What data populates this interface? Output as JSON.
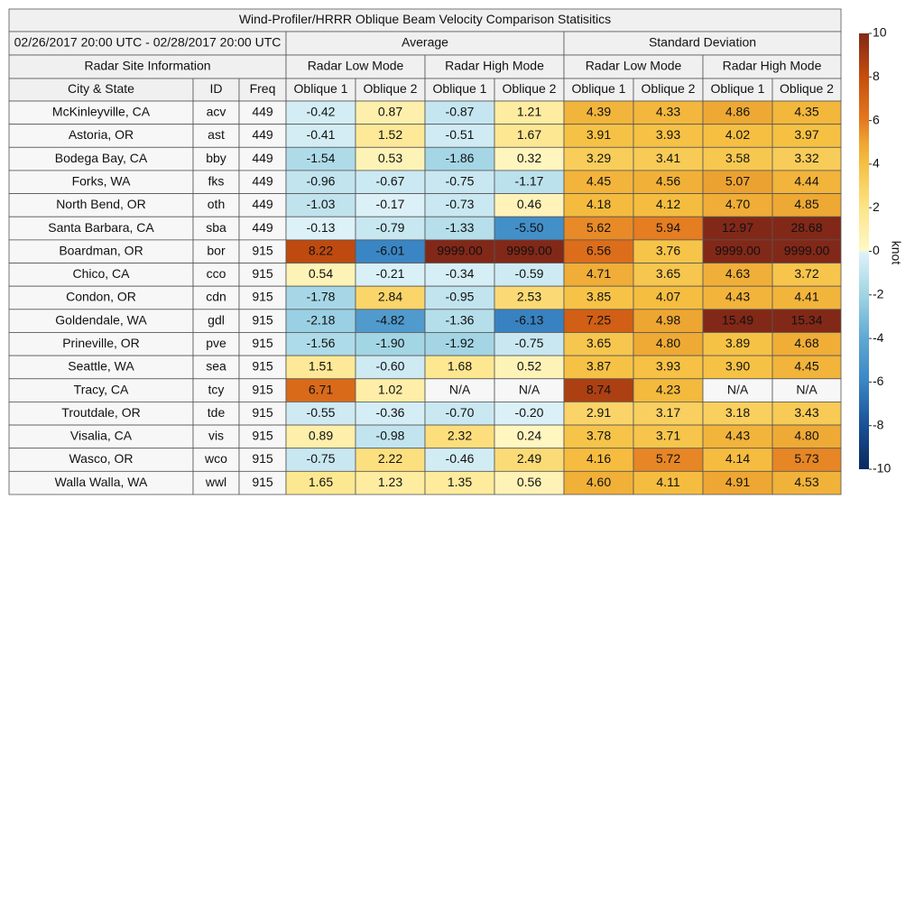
{
  "title": "Wind-Profiler/HRRR Oblique Beam Velocity Comparison Statisitics",
  "period": "02/26/2017 20:00 UTC - 02/28/2017 20:00 UTC",
  "site_info": "Radar Site Information",
  "groups": [
    "Average",
    "Standard Deviation"
  ],
  "modes": [
    "Radar Low Mode",
    "Radar High Mode",
    "Radar Low Mode",
    "Radar High Mode"
  ],
  "columns": [
    "City & State",
    "ID",
    "Freq",
    "Oblique 1",
    "Oblique 2",
    "Oblique 1",
    "Oblique 2",
    "Oblique 1",
    "Oblique 2",
    "Oblique 1",
    "Oblique 2"
  ],
  "rows": [
    [
      "McKinleyville, CA",
      "acv",
      "449",
      "-0.42",
      "0.87",
      "-0.87",
      "1.21",
      "4.39",
      "4.33",
      "4.86",
      "4.35"
    ],
    [
      "Astoria, OR",
      "ast",
      "449",
      "-0.41",
      "1.52",
      "-0.51",
      "1.67",
      "3.91",
      "3.93",
      "4.02",
      "3.97"
    ],
    [
      "Bodega Bay, CA",
      "bby",
      "449",
      "-1.54",
      "0.53",
      "-1.86",
      "0.32",
      "3.29",
      "3.41",
      "3.58",
      "3.32"
    ],
    [
      "Forks, WA",
      "fks",
      "449",
      "-0.96",
      "-0.67",
      "-0.75",
      "-1.17",
      "4.45",
      "4.56",
      "5.07",
      "4.44"
    ],
    [
      "North Bend, OR",
      "oth",
      "449",
      "-1.03",
      "-0.17",
      "-0.73",
      "0.46",
      "4.18",
      "4.12",
      "4.70",
      "4.85"
    ],
    [
      "Santa Barbara, CA",
      "sba",
      "449",
      "-0.13",
      "-0.79",
      "-1.33",
      "-5.50",
      "5.62",
      "5.94",
      "12.97",
      "28.68"
    ],
    [
      "Boardman, OR",
      "bor",
      "915",
      "8.22",
      "-6.01",
      "9999.00",
      "9999.00",
      "6.56",
      "3.76",
      "9999.00",
      "9999.00"
    ],
    [
      "Chico, CA",
      "cco",
      "915",
      "0.54",
      "-0.21",
      "-0.34",
      "-0.59",
      "4.71",
      "3.65",
      "4.63",
      "3.72"
    ],
    [
      "Condon, OR",
      "cdn",
      "915",
      "-1.78",
      "2.84",
      "-0.95",
      "2.53",
      "3.85",
      "4.07",
      "4.43",
      "4.41"
    ],
    [
      "Goldendale, WA",
      "gdl",
      "915",
      "-2.18",
      "-4.82",
      "-1.36",
      "-6.13",
      "7.25",
      "4.98",
      "15.49",
      "15.34"
    ],
    [
      "Prineville, OR",
      "pve",
      "915",
      "-1.56",
      "-1.90",
      "-1.92",
      "-0.75",
      "3.65",
      "4.80",
      "3.89",
      "4.68"
    ],
    [
      "Seattle, WA",
      "sea",
      "915",
      "1.51",
      "-0.60",
      "1.68",
      "0.52",
      "3.87",
      "3.93",
      "3.90",
      "4.45"
    ],
    [
      "Tracy, CA",
      "tcy",
      "915",
      "6.71",
      "1.02",
      "N/A",
      "N/A",
      "8.74",
      "4.23",
      "N/A",
      "N/A"
    ],
    [
      "Troutdale, OR",
      "tde",
      "915",
      "-0.55",
      "-0.36",
      "-0.70",
      "-0.20",
      "2.91",
      "3.17",
      "3.18",
      "3.43"
    ],
    [
      "Visalia, CA",
      "vis",
      "915",
      "0.89",
      "-0.98",
      "2.32",
      "0.24",
      "3.78",
      "3.71",
      "4.43",
      "4.80"
    ],
    [
      "Wasco, OR",
      "wco",
      "915",
      "-0.75",
      "2.22",
      "-0.46",
      "2.49",
      "4.16",
      "5.72",
      "4.14",
      "5.73"
    ],
    [
      "Walla Walla, WA",
      "wwl",
      "915",
      "1.65",
      "1.23",
      "1.35",
      "0.56",
      "4.60",
      "4.11",
      "4.91",
      "4.53"
    ]
  ],
  "colorbar": {
    "label": "knot",
    "lim": [
      -10,
      10
    ],
    "ticks": [
      10,
      8,
      6,
      4,
      2,
      0,
      -2,
      -4,
      -6,
      -8,
      -10
    ]
  }
}
